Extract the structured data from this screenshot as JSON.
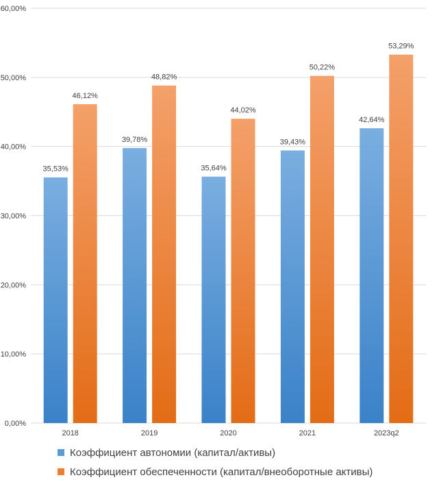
{
  "chart_data": {
    "type": "bar",
    "title": "",
    "xlabel": "",
    "ylabel": "",
    "ylim": [
      0,
      60
    ],
    "y_ticks": [
      "0,00%",
      "10,00%",
      "20,00%",
      "30,00%",
      "40,00%",
      "50,00%",
      "60,00%"
    ],
    "grid": true,
    "legend_position": "bottom",
    "categories": [
      "2018",
      "2019",
      "2020",
      "2021",
      "2023q2"
    ],
    "series": [
      {
        "name": "Коэффициент автономии (капитал/активы)",
        "color": "#5b9bd5",
        "values": [
          35.53,
          39.78,
          35.64,
          39.43,
          42.64
        ],
        "labels": [
          "35,53%",
          "39,78%",
          "35,64%",
          "39,43%",
          "42,64%"
        ]
      },
      {
        "name": "Коэффициент обеспеченности (капитал/внеоборотные активы)",
        "color": "#ed7d31",
        "values": [
          46.12,
          48.82,
          44.02,
          50.22,
          53.29
        ],
        "labels": [
          "46,12%",
          "48,82%",
          "44,02%",
          "50,22%",
          "53,29%"
        ]
      }
    ]
  }
}
